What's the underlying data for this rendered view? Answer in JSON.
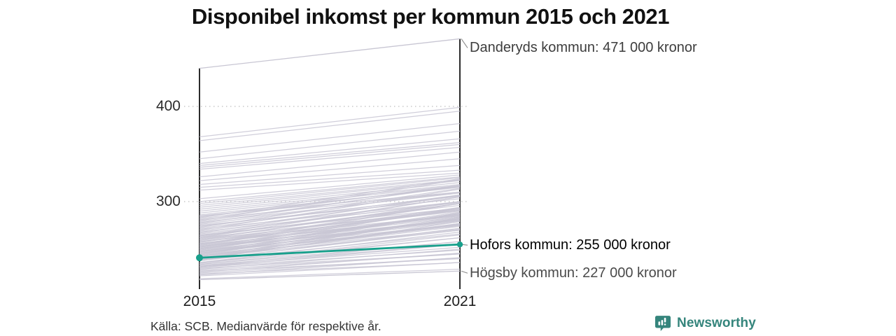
{
  "title": "Disponibel inkomst per kommun 2015 och 2021",
  "footer": {
    "source": "Källa: SCB. Medianvärde för respektive år."
  },
  "brand": {
    "name": "Newsworthy",
    "color": "#35857c",
    "icon": "bar-chart-speech-bubble-icon"
  },
  "chart_data": {
    "type": "line",
    "subtype": "slopegraph",
    "title": "Disponibel inkomst per kommun 2015 och 2021",
    "x": [
      2015,
      2021
    ],
    "x_tick_labels": [
      "2015",
      "2021"
    ],
    "y_ticks": [
      {
        "label": "400",
        "value": 400
      },
      {
        "label": "300",
        "value": 300
      }
    ],
    "ylim": [
      215,
      475
    ],
    "grid": "dotted horizontal gridlines at y ticks",
    "legend": "none",
    "unit": "tusen kronor (labels i kronor)",
    "colors": {
      "highlight": "#18a08c",
      "background_line": "#c8c6d3",
      "axis": "#141414",
      "gridline": "#c9c9c9",
      "leader": "#8a8a8a"
    },
    "series": [
      {
        "name": "Danderyds kommun",
        "label": "Danderyds kommun: 471 000 kronor",
        "values": [
          440,
          471
        ],
        "highlight": false,
        "label_dy": 13
      },
      {
        "name": "Hofors kommun",
        "label": "Hofors kommun: 255 000 kronor",
        "values": [
          241,
          255
        ],
        "highlight": true,
        "label_dy": 1
      },
      {
        "name": "Högsby kommun",
        "label": "Högsby kommun: 227 000 kronor",
        "values": [
          218,
          227
        ],
        "highlight": false,
        "label_dy": 3
      }
    ],
    "background_series": [
      [
        368,
        399
      ],
      [
        364,
        395
      ],
      [
        352,
        382
      ],
      [
        345,
        374
      ],
      [
        340,
        366
      ],
      [
        338,
        362
      ],
      [
        336,
        360
      ],
      [
        334,
        357
      ],
      [
        326,
        352
      ],
      [
        322,
        345
      ],
      [
        318,
        338
      ],
      [
        315,
        333
      ],
      [
        312,
        330
      ],
      [
        219,
        229
      ],
      [
        222,
        236
      ],
      [
        223,
        241
      ],
      [
        224,
        236
      ],
      [
        225,
        241
      ],
      [
        226,
        246
      ],
      [
        227,
        240
      ],
      [
        228,
        245
      ],
      [
        229,
        250
      ],
      [
        230,
        245
      ],
      [
        231,
        249
      ],
      [
        231,
        255
      ],
      [
        232,
        252
      ],
      [
        232,
        258
      ],
      [
        233,
        255
      ],
      [
        234,
        262
      ],
      [
        234,
        258
      ],
      [
        235,
        265
      ],
      [
        236,
        262
      ],
      [
        236,
        268
      ],
      [
        238,
        266
      ],
      [
        238,
        272
      ],
      [
        239,
        279
      ],
      [
        239,
        270
      ],
      [
        240,
        277
      ],
      [
        240,
        283
      ],
      [
        241,
        270
      ],
      [
        241,
        276
      ],
      [
        242,
        283
      ],
      [
        242,
        274
      ],
      [
        243,
        271
      ],
      [
        243,
        277
      ],
      [
        244,
        284
      ],
      [
        244,
        275
      ],
      [
        245,
        282
      ],
      [
        245,
        288
      ],
      [
        246,
        275
      ],
      [
        246,
        281
      ],
      [
        247,
        288
      ],
      [
        247,
        279
      ],
      [
        248,
        276
      ],
      [
        248,
        282
      ],
      [
        249,
        289
      ],
      [
        249,
        280
      ],
      [
        250,
        287
      ],
      [
        250,
        293
      ],
      [
        251,
        280
      ],
      [
        251,
        286
      ],
      [
        252,
        293
      ],
      [
        252,
        284
      ],
      [
        253,
        281
      ],
      [
        253,
        287
      ],
      [
        254,
        294
      ],
      [
        254,
        285
      ],
      [
        255,
        292
      ],
      [
        255,
        298
      ],
      [
        256,
        285
      ],
      [
        256,
        291
      ],
      [
        257,
        298
      ],
      [
        258,
        290
      ],
      [
        258,
        286
      ],
      [
        259,
        293
      ],
      [
        260,
        300
      ],
      [
        260,
        291
      ],
      [
        261,
        298
      ],
      [
        262,
        305
      ],
      [
        262,
        291
      ],
      [
        263,
        298
      ],
      [
        264,
        305
      ],
      [
        264,
        296
      ],
      [
        265,
        293
      ],
      [
        266,
        300
      ],
      [
        267,
        307
      ],
      [
        268,
        299
      ],
      [
        269,
        306
      ],
      [
        270,
        313
      ],
      [
        271,
        300
      ],
      [
        272,
        307
      ],
      [
        273,
        314
      ],
      [
        274,
        306
      ],
      [
        275,
        303
      ],
      [
        276,
        310
      ],
      [
        277,
        317
      ],
      [
        278,
        309
      ],
      [
        279,
        316
      ],
      [
        280,
        323
      ],
      [
        281,
        310
      ],
      [
        282,
        317
      ],
      [
        283,
        324
      ],
      [
        284,
        316
      ],
      [
        285,
        310
      ],
      [
        286,
        315
      ],
      [
        288,
        317
      ],
      [
        290,
        318
      ],
      [
        292,
        320
      ],
      [
        294,
        322
      ],
      [
        296,
        323
      ],
      [
        298,
        325
      ],
      [
        300,
        326
      ],
      [
        303,
        328
      ]
    ]
  }
}
